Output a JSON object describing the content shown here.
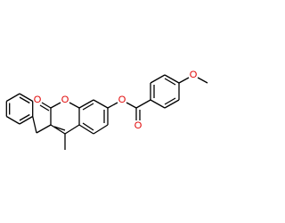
{
  "atoms": [
    {
      "label": "O"
    },
    {
      "label": "O"
    },
    {
      "label": "O"
    },
    {
      "label": "O"
    },
    {
      "label": "O"
    }
  ]
}
